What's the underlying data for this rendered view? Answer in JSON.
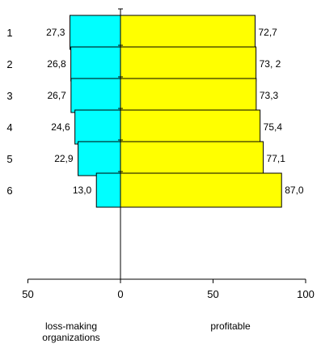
{
  "chart_data": {
    "type": "bar",
    "orientation": "horizontal",
    "stacking": "diverging",
    "categories": [
      "1",
      "2",
      "3",
      "4",
      "5",
      "6"
    ],
    "series": [
      {
        "name": "loss-making organizations",
        "values": [
          27.3,
          26.8,
          26.7,
          24.6,
          22.9,
          13.0
        ],
        "labels": [
          "27,3",
          "26,8",
          "26,7",
          "24,6",
          "22,9",
          "13,0"
        ],
        "color": "#00FFFF",
        "direction": "left"
      },
      {
        "name": "profitable",
        "values": [
          72.7,
          73.2,
          73.3,
          75.4,
          77.1,
          87.0
        ],
        "labels": [
          "72,7",
          "73, 2",
          "73,3",
          "75,4",
          "77,1",
          "87,0"
        ],
        "color": "#FFFF00",
        "direction": "right"
      }
    ],
    "xaxis": {
      "ticks": [
        -50,
        0,
        50,
        100
      ],
      "tick_labels": [
        "50",
        "0",
        "50",
        "100"
      ],
      "range": [
        -50,
        100
      ]
    },
    "grid": false,
    "legend": {
      "position": "bottom",
      "entries": [
        "loss-making organizations",
        "profitable"
      ]
    }
  }
}
